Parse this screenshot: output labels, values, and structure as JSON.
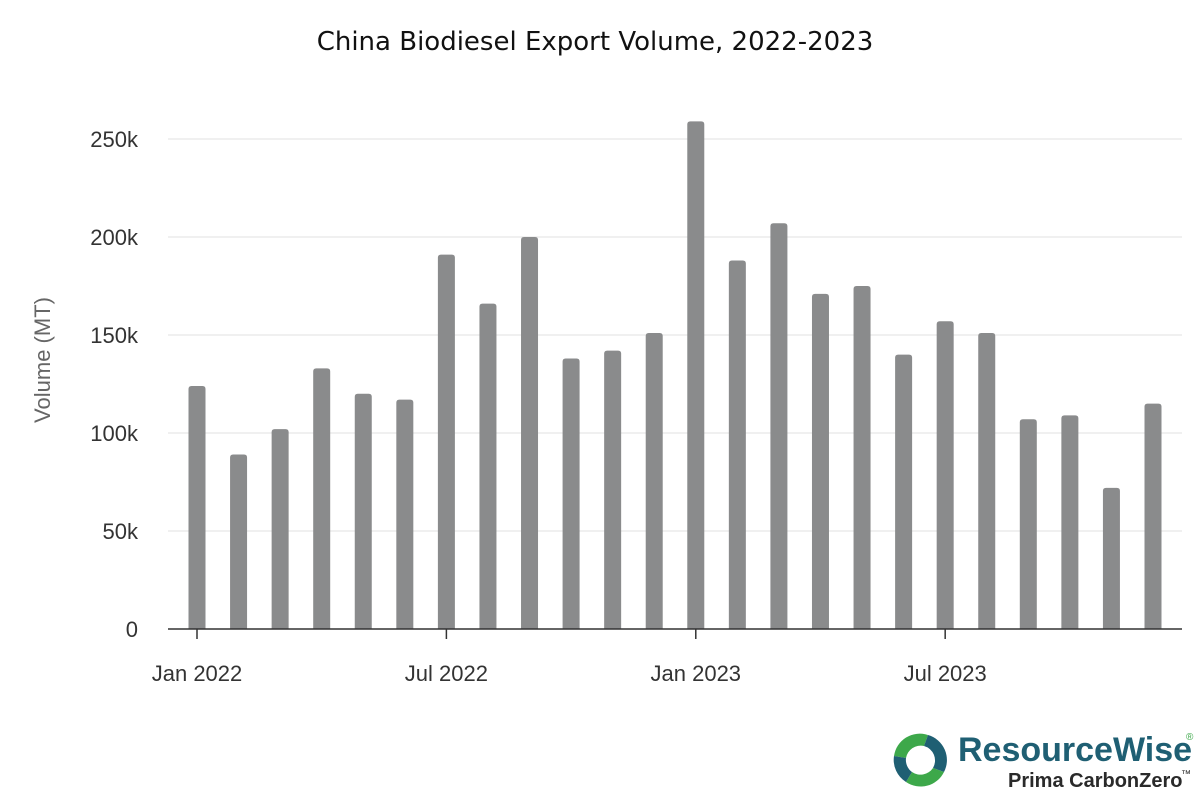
{
  "chart_data": {
    "type": "bar",
    "title": "China Biodiesel Export Volume, 2022-2023",
    "xlabel": "",
    "ylabel": "Volume (MT)",
    "ylim": [
      0,
      275000
    ],
    "y_ticks": [
      0,
      50000,
      100000,
      150000,
      200000,
      250000
    ],
    "y_tick_labels": [
      "0",
      "50k",
      "100k",
      "150k",
      "200k",
      "250k"
    ],
    "x_tick_labels": [
      {
        "index": 0,
        "label": "Jan 2022"
      },
      {
        "index": 6,
        "label": "Jul 2022"
      },
      {
        "index": 12,
        "label": "Jan 2023"
      },
      {
        "index": 18,
        "label": "Jul 2023"
      }
    ],
    "categories": [
      "Jan 2022",
      "Feb 2022",
      "Mar 2022",
      "Apr 2022",
      "May 2022",
      "Jun 2022",
      "Jul 2022",
      "Aug 2022",
      "Sep 2022",
      "Oct 2022",
      "Nov 2022",
      "Dec 2022",
      "Jan 2023",
      "Feb 2023",
      "Mar 2023",
      "Apr 2023",
      "May 2023",
      "Jun 2023",
      "Jul 2023",
      "Aug 2023",
      "Sep 2023",
      "Oct 2023",
      "Nov 2023",
      "Dec 2023"
    ],
    "values": [
      124000,
      89000,
      102000,
      133000,
      120000,
      117000,
      191000,
      166000,
      200000,
      138000,
      142000,
      151000,
      259000,
      188000,
      207000,
      171000,
      175000,
      140000,
      157000,
      151000,
      107000,
      109000,
      72000,
      115000
    ],
    "bar_color": "#8a8b8c",
    "grid": true,
    "grid_color": "#e0e0e0"
  },
  "logo": {
    "name": "ResourceWise",
    "registered": "®",
    "subtitle": "Prima CarbonZero",
    "trademark": "™",
    "colors": {
      "teal": "#1f5f73",
      "green": "#3da84a"
    }
  }
}
